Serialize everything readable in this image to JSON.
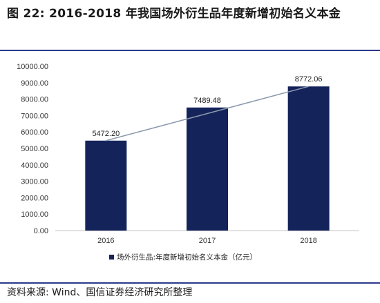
{
  "figure": {
    "title": "图 22: 2016-2018 年我国场外衍生品年度新增初始名义本金",
    "source": "资料来源: Wind、国信证券经济研究所整理"
  },
  "colors": {
    "bar": "#14235a",
    "trend": "#8c9aae",
    "rule": "#2b3a8c"
  },
  "chart_data": {
    "type": "bar",
    "categories": [
      "2016",
      "2017",
      "2018"
    ],
    "series": [
      {
        "name": "场外衍生品:年度新增初始名义本金（亿元）",
        "values": [
          5472.2,
          7489.48,
          8772.06
        ]
      }
    ],
    "data_labels": [
      "5472.20",
      "7489.48",
      "8772.06"
    ],
    "trendline": true,
    "ylim": [
      0,
      10000
    ],
    "y_ticks": [
      "0.00",
      "1000.00",
      "2000.00",
      "3000.00",
      "4000.00",
      "5000.00",
      "6000.00",
      "7000.00",
      "8000.00",
      "9000.00",
      "10000.00"
    ],
    "legend_position": "bottom",
    "grid": false
  }
}
